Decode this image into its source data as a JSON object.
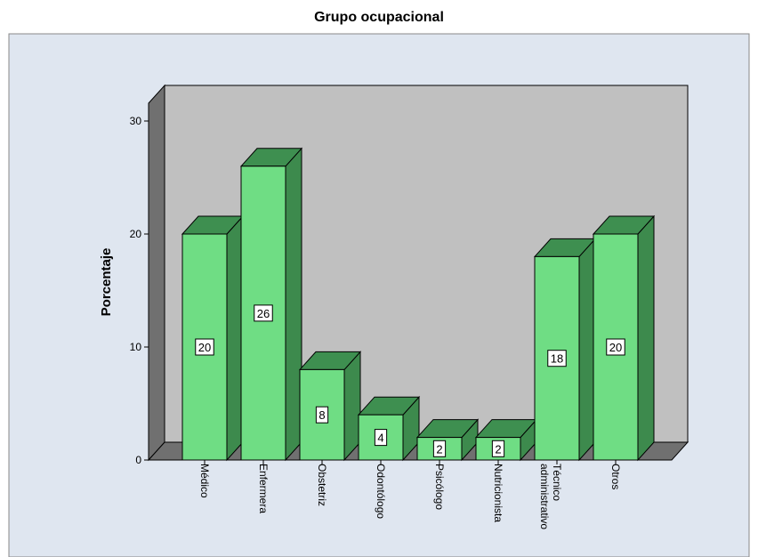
{
  "chart_data": {
    "type": "bar3d",
    "title": "Grupo ocupacional",
    "y_label": "Porcentaje",
    "categories": [
      "Médico",
      "Enfermera",
      "Obstetriz",
      "Odontólogo",
      "Psicólogo",
      "Nutricionista",
      "Técnico administrativo",
      "Otros"
    ],
    "values": [
      20,
      26,
      8,
      4,
      2,
      2,
      18,
      20
    ],
    "color": "#6fdd84",
    "ylim": [
      0,
      30
    ],
    "yticks": [
      0,
      10,
      20,
      30
    ]
  }
}
